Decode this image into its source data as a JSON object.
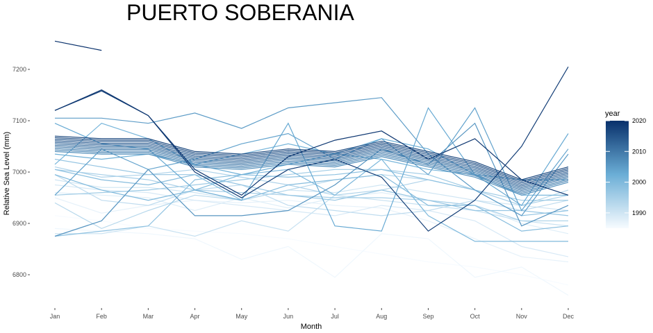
{
  "chart_data": {
    "type": "line",
    "title": "PUERTO SOBERANIA",
    "xlabel": "Month",
    "ylabel": "Relative Sea Level (mm)",
    "categories": [
      "Jan",
      "Feb",
      "Mar",
      "Apr",
      "May",
      "Jun",
      "Jul",
      "Aug",
      "Sep",
      "Oct",
      "Nov",
      "Dec"
    ],
    "yticks": [
      6800,
      6900,
      7000,
      7100,
      7200
    ],
    "ylim": [
      6765,
      7270
    ],
    "grid": false,
    "legend": {
      "title": "year",
      "position": "right",
      "type": "colorbar",
      "range": [
        1985,
        2020
      ],
      "ticks": [
        1990,
        2000,
        2010,
        2020
      ],
      "color_low": "#f7fbff",
      "color_high": "#08306b"
    },
    "series": [
      {
        "year": 1985,
        "values": [
          6915,
          6905,
          6890,
          6885,
          6880,
          6870,
          6855,
          6840,
          6825,
          6815,
          6800,
          6780
        ]
      },
      {
        "year": 1986,
        "values": [
          6890,
          6885,
          6880,
          6870,
          6830,
          6855,
          6795,
          6880,
          6870,
          6795,
          6815,
          6760
        ]
      },
      {
        "year": 1987,
        "values": [
          6950,
          6920,
          6935,
          6945,
          6940,
          6945,
          6935,
          6930,
          6905,
          6870,
          6835,
          6825
        ]
      },
      {
        "year": 1988,
        "values": [
          6960,
          6955,
          6950,
          6925,
          6950,
          6930,
          6950,
          6960,
          6945,
          6935,
          6900,
          6880
        ]
      },
      {
        "year": 1989,
        "values": [
          6975,
          6965,
          6960,
          6945,
          6935,
          6925,
          6915,
          6935,
          6925,
          6905,
          6855,
          6835
        ]
      },
      {
        "year": 1990,
        "values": [
          6985,
          6970,
          6970,
          6960,
          6945,
          6965,
          6960,
          6975,
          6960,
          6945,
          6935,
          6925
        ]
      },
      {
        "year": 1991,
        "values": [
          6880,
          6880,
          6895,
          6875,
          6905,
          6885,
          6955,
          6945,
          6935,
          6925,
          6905,
          6895
        ]
      },
      {
        "year": 1992,
        "values": [
          6995,
          6945,
          6935,
          6965,
          6975,
          6935,
          6925,
          6915,
          6925,
          6945,
          6925,
          6945
        ]
      },
      {
        "year": 1993,
        "values": [
          6940,
          6890,
          6925,
          6955,
          6945,
          6965,
          6985,
          6995,
          6985,
          6965,
          6935,
          6965
        ]
      },
      {
        "year": 1994,
        "values": [
          7010,
          6990,
          6995,
          7005,
          6990,
          6975,
          6955,
          6965,
          6985,
          6965,
          6935,
          6955
        ]
      },
      {
        "year": 1995,
        "values": [
          7005,
          6995,
          6985,
          6965,
          6960,
          6955,
          6950,
          6950,
          6945,
          6935,
          6905,
          6905
        ]
      },
      {
        "year": 1996,
        "values": [
          6955,
          6960,
          6965,
          6975,
          6985,
          6995,
          7005,
          7005,
          6995,
          6965,
          6945,
          6945
        ]
      },
      {
        "year": 1997,
        "values": [
          7025,
          7010,
          6995,
          6995,
          6975,
          6955,
          6945,
          6965,
          6945,
          6925,
          6925,
          6915
        ]
      },
      {
        "year": 1998,
        "values": [
          6875,
          6885,
          6895,
          6985,
          6995,
          6990,
          6995,
          7005,
          6985,
          6965,
          6915,
          6925
        ]
      },
      {
        "year": 1999,
        "values": [
          7005,
          6985,
          6975,
          6995,
          6945,
          6975,
          6985,
          6995,
          6935,
          6935,
          6885,
          6895
        ]
      },
      {
        "year": 2000,
        "values": [
          6995,
          6965,
          6945,
          6965,
          6995,
          7005,
          6955,
          7025,
          6915,
          6865,
          6865,
          6865
        ]
      },
      {
        "year": 2001,
        "values": [
          7015,
          7095,
          7065,
          7015,
          7035,
          7055,
          7035,
          7025,
          7005,
          6995,
          6985,
          6985
        ]
      },
      {
        "year": 2002,
        "values": [
          7035,
          7025,
          7035,
          7015,
          6995,
          7015,
          7035,
          7065,
          7045,
          6995,
          6955,
          6955
        ]
      },
      {
        "year": 2003,
        "values": [
          7095,
          7055,
          7045,
          6965,
          6945,
          7095,
          6895,
          6885,
          7125,
          6995,
          6935,
          7075
        ]
      },
      {
        "year": 2004,
        "values": [
          6955,
          7045,
          7005,
          7025,
          7055,
          7075,
          7025,
          7065,
          6995,
          7125,
          6925,
          7045
        ]
      },
      {
        "year": 2005,
        "values": [
          7105,
          7105,
          7095,
          7115,
          7085,
          7125,
          7135,
          7145,
          7035,
          6965,
          6915,
          7035
        ]
      },
      {
        "year": 2006,
        "values": [
          6875,
          6905,
          7005,
          6915,
          6915,
          6925,
          6975,
          7045,
          7015,
          7095,
          6895,
          6935
        ]
      },
      {
        "year": 2007,
        "values": [
          7040,
          7035,
          7035,
          7010,
          7005,
          7015,
          7010,
          7030,
          7010,
          6990,
          6955,
          6980
        ]
      },
      {
        "year": 2008,
        "values": [
          7043,
          7038,
          7038,
          7013,
          7008,
          7018,
          7013,
          7033,
          7013,
          6993,
          6958,
          6983
        ]
      },
      {
        "year": 2009,
        "values": [
          7046,
          7041,
          7041,
          7016,
          7011,
          7021,
          7016,
          7036,
          7016,
          6996,
          6961,
          6986
        ]
      },
      {
        "year": 2010,
        "values": [
          7049,
          7044,
          7044,
          7019,
          7014,
          7024,
          7019,
          7039,
          7019,
          6999,
          6964,
          6989
        ]
      },
      {
        "year": 2011,
        "values": [
          7052,
          7047,
          7047,
          7022,
          7017,
          7027,
          7022,
          7042,
          7022,
          7002,
          6967,
          6992
        ]
      },
      {
        "year": 2012,
        "values": [
          7055,
          7050,
          7050,
          7025,
          7020,
          7030,
          7025,
          7045,
          7025,
          7005,
          6970,
          6995
        ]
      },
      {
        "year": 2013,
        "values": [
          7058,
          7053,
          7053,
          7028,
          7023,
          7033,
          7028,
          7048,
          7028,
          7008,
          6973,
          6998
        ]
      },
      {
        "year": 2014,
        "values": [
          7061,
          7056,
          7056,
          7031,
          7026,
          7036,
          7031,
          7051,
          7031,
          7011,
          6976,
          7001
        ]
      },
      {
        "year": 2015,
        "values": [
          7064,
          7059,
          7059,
          7034,
          7029,
          7039,
          7034,
          7054,
          7034,
          7014,
          6979,
          7004
        ]
      },
      {
        "year": 2016,
        "values": [
          7067,
          7062,
          7062,
          7037,
          7032,
          7042,
          7037,
          7057,
          7037,
          7017,
          6982,
          7007
        ]
      },
      {
        "year": 2017,
        "values": [
          7070,
          7065,
          7065,
          7040,
          7035,
          7045,
          7040,
          7060,
          7040,
          7020,
          6985,
          7010
        ]
      },
      {
        "year": 2018,
        "values": [
          7120,
          7158,
          7110,
          7000,
          6950,
          7005,
          7025,
          6990,
          6885,
          6945,
          7050,
          7205
        ]
      },
      {
        "year": 2019,
        "values": [
          7120,
          7160,
          7110,
          7005,
          6955,
          7030,
          7062,
          7080,
          7025,
          7065,
          6985,
          6955
        ]
      },
      {
        "year": 2020,
        "values": [
          7255,
          7237,
          null,
          null,
          null,
          null,
          null,
          null,
          null,
          null,
          null,
          null
        ]
      }
    ]
  }
}
